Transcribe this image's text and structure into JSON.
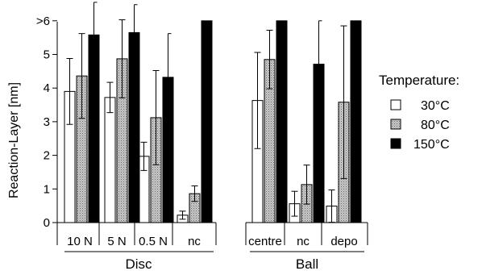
{
  "chart_data": {
    "type": "bar",
    "ylabel": "Reaction-Layer [nm]",
    "ylim": [
      0,
      6.25
    ],
    "yticks": [
      {
        "value": 0,
        "label": "0"
      },
      {
        "value": 1,
        "label": "1"
      },
      {
        "value": 2,
        "label": "2"
      },
      {
        "value": 3,
        "label": "3"
      },
      {
        "value": 4,
        "label": "4"
      },
      {
        "value": 5,
        "label": "5"
      },
      {
        "value": 6,
        "label": ">6"
      }
    ],
    "legend": {
      "title": "Temperature:",
      "position": "right",
      "entries": [
        "30°C",
        "80°C",
        "150°C"
      ]
    },
    "groups": [
      {
        "label": "Disc",
        "categories": [
          "10 N",
          "5 N",
          "0.5 N",
          "nc"
        ]
      },
      {
        "label": "Ball",
        "categories": [
          "centre",
          "nc",
          "depo"
        ]
      }
    ],
    "categories": [
      "10 N",
      "5 N",
      "0.5 N",
      "nc",
      "centre",
      "nc",
      "depo"
    ],
    "series": [
      {
        "name": "30°C",
        "fill": "#ffffff",
        "values": [
          3.9,
          3.72,
          1.97,
          0.22,
          3.63,
          0.56,
          0.49
        ],
        "errors": [
          0.98,
          0.45,
          0.42,
          0.12,
          1.43,
          0.37,
          0.48
        ]
      },
      {
        "name": "80°C",
        "fill": "#bdbdbd",
        "values": [
          4.36,
          4.87,
          3.12,
          0.86,
          4.85,
          1.13,
          3.58
        ],
        "errors": [
          1.26,
          1.16,
          1.4,
          0.23,
          0.87,
          0.58,
          2.27
        ]
      },
      {
        "name": "150°C",
        "fill": "#000000",
        "values": [
          5.58,
          5.65,
          4.32,
          6.0,
          6.0,
          4.71,
          6.0
        ],
        "errors": [
          0.97,
          0.83,
          1.3,
          0,
          0,
          1.29,
          0
        ]
      }
    ]
  }
}
